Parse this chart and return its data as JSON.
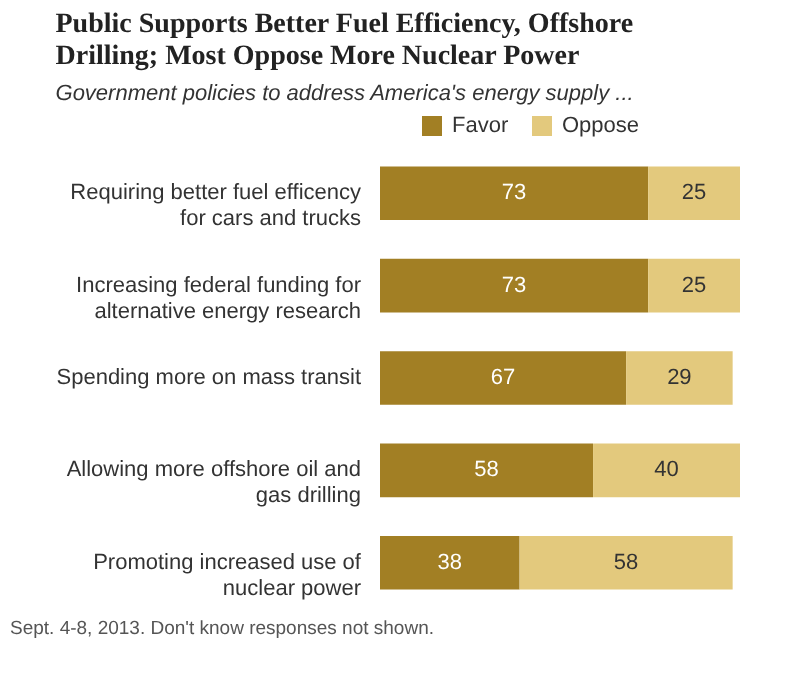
{
  "chart_data": {
    "type": "bar",
    "orientation": "horizontal",
    "stacked": true,
    "data_labels": true,
    "legend": "top",
    "grid": false,
    "title": "Public Supports Better Fuel Efficiency, Offshore\nDrilling; Most Oppose More Nuclear Power",
    "subtitle": "Government policies to address America's energy supply ...",
    "categories": [
      "Requiring better fuel efficency\nfor cars and trucks",
      "Increasing federal funding for\nalternative energy research",
      "Spending more on mass transit",
      "Allowing more offshore oil and\ngas drilling",
      "Promoting increased use of\nnuclear power"
    ],
    "series": [
      {
        "name": "Favor",
        "color": "#a27f24",
        "values": [
          73,
          73,
          67,
          58,
          38
        ]
      },
      {
        "name": "Oppose",
        "color": "#e3c97d",
        "values": [
          25,
          25,
          29,
          40,
          58
        ]
      }
    ],
    "annotations": [
      "Sept. 4-8, 2013. Don't know responses not shown."
    ]
  }
}
